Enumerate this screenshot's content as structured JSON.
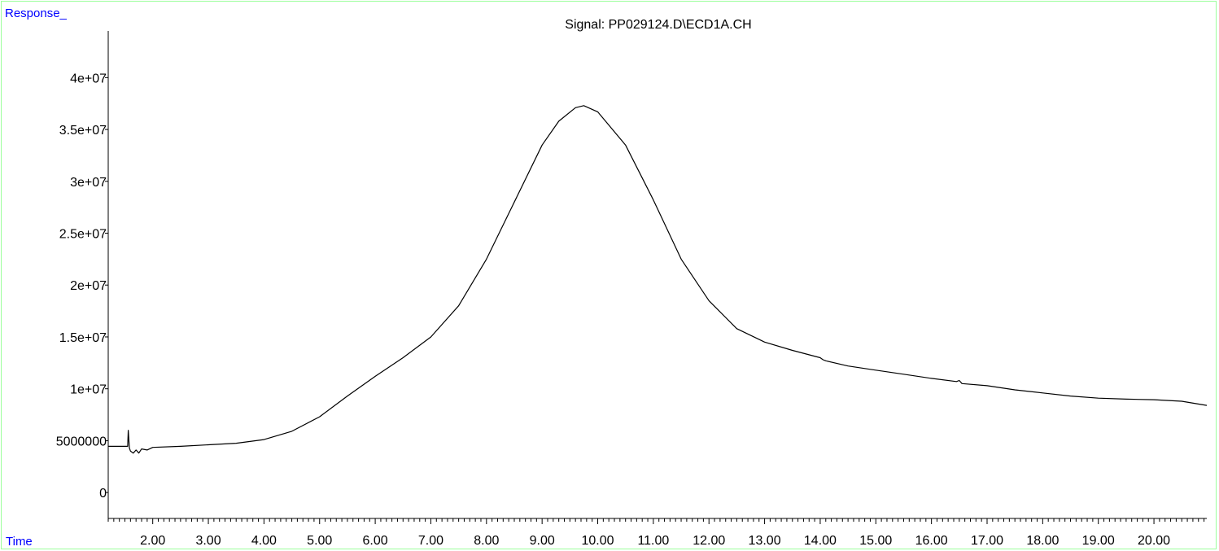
{
  "chart_data": {
    "type": "line",
    "title": "Signal: PP029124.D\\ECD1A.CH",
    "ylabel": "Response_",
    "xlabel": "Time",
    "xlim": [
      1.2,
      20.95
    ],
    "ylim": [
      -2500000,
      44500000
    ],
    "x_ticks": [
      2,
      3,
      4,
      5,
      6,
      7,
      8,
      9,
      10,
      11,
      12,
      13,
      14,
      15,
      16,
      17,
      18,
      19,
      20
    ],
    "x_tick_labels": [
      "2.00",
      "3.00",
      "4.00",
      "5.00",
      "6.00",
      "7.00",
      "8.00",
      "9.00",
      "10.00",
      "11.00",
      "12.00",
      "13.00",
      "14.00",
      "15.00",
      "16.00",
      "17.00",
      "18.00",
      "19.00",
      "20.00"
    ],
    "y_ticks": [
      0,
      5000000,
      10000000,
      15000000,
      20000000,
      25000000,
      30000000,
      35000000,
      40000000
    ],
    "y_tick_labels": [
      "0",
      "5000000",
      "1e+07",
      "1.5e+07",
      "2e+07",
      "2.5e+07",
      "3e+07",
      "3.5e+07",
      "4e+07"
    ],
    "grid": false,
    "series": [
      {
        "color": "#000000",
        "x": [
          1.2,
          1.55,
          1.56,
          1.58,
          1.6,
          1.65,
          1.7,
          1.75,
          1.8,
          1.9,
          2.0,
          2.5,
          3.0,
          3.5,
          4.0,
          4.5,
          5.0,
          5.5,
          6.0,
          6.5,
          7.0,
          7.5,
          8.0,
          8.5,
          9.0,
          9.3,
          9.6,
          9.75,
          10.0,
          10.5,
          11.0,
          11.5,
          12.0,
          12.5,
          13.0,
          13.5,
          14.0,
          14.05,
          14.1,
          14.5,
          15.0,
          15.5,
          16.0,
          16.45,
          16.5,
          16.55,
          17.0,
          17.5,
          18.0,
          18.5,
          19.0,
          19.5,
          20.0,
          20.5,
          20.95
        ],
        "y": [
          4450000,
          4450000,
          6000000,
          4300000,
          4000000,
          3800000,
          4100000,
          3800000,
          4200000,
          4100000,
          4350000,
          4450000,
          4600000,
          4750000,
          5100000,
          5900000,
          7300000,
          9300000,
          11200000,
          13000000,
          15000000,
          18000000,
          22500000,
          28000000,
          33500000,
          35800000,
          37100000,
          37300000,
          36700000,
          33500000,
          28200000,
          22500000,
          18500000,
          15800000,
          14500000,
          13700000,
          13000000,
          12800000,
          12700000,
          12200000,
          11800000,
          11400000,
          11000000,
          10700000,
          10800000,
          10500000,
          10300000,
          9900000,
          9600000,
          9300000,
          9100000,
          9000000,
          8950000,
          8800000,
          8400000
        ]
      }
    ]
  }
}
